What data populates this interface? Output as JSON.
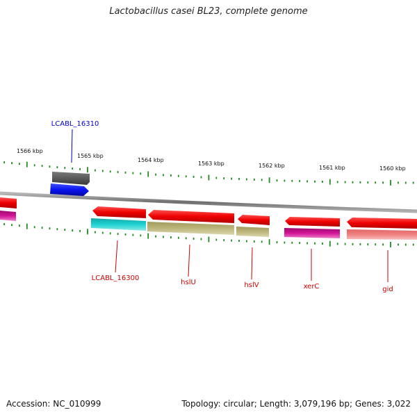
{
  "title": "Lactobacillus casei BL23, complete genome",
  "footer": {
    "accession": "Accession: NC_010999",
    "summary": "Topology: circular; Length: 3,079,196 bp; Genes: 3,022"
  },
  "scale_labels": [
    "1566 kbp",
    "1565 kbp",
    "1564 kbp",
    "1563 kbp",
    "1562 kbp",
    "1561 kbp",
    "1560 kbp"
  ],
  "gene_labels": [
    {
      "text": "LCABL_16310",
      "color": "#0000cc"
    },
    {
      "text": "LCABL_16300",
      "color": "#cc0000"
    },
    {
      "text": "hslU",
      "color": "#cc0000"
    },
    {
      "text": "hslV",
      "color": "#cc0000"
    },
    {
      "text": "xerC",
      "color": "#cc0000"
    },
    {
      "text": "gid",
      "color": "#cc0000"
    }
  ],
  "colors": {
    "gene_red": "#ee0000",
    "gene_blue": "#0a14f0",
    "gene_gray": "#5a5a5a",
    "cds_cyan": "#1ec8c8",
    "cds_olive": "#b9b478",
    "cds_magenta": "#d21496",
    "cds_pink": "#f08080",
    "backbone": "#8c8c8c",
    "tick_green": "#1e8c1e"
  }
}
